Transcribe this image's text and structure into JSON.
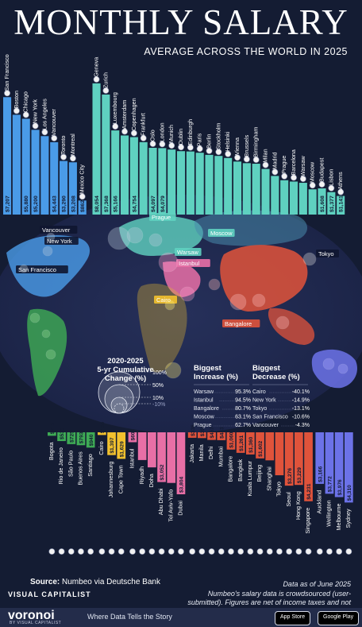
{
  "header": {
    "title": "MONTHLY SALARY",
    "subtitle": "AVERAGE ACROSS THE WORLD IN 2025"
  },
  "colors": {
    "background": "#141c33",
    "north_america": "#4a9be8",
    "europe": "#5fd1c0",
    "latin_america": "#3eaa55",
    "africa": "#f2c12e",
    "middle_east": "#e86fa6",
    "asia": "#e0533b",
    "oceania": "#6c72e8"
  },
  "chart_data": {
    "type": "bar",
    "unit": "$",
    "top_groups": [
      {
        "region": "North America",
        "color": "#4a9be8",
        "categories": [
          "San Francisco",
          "Boston",
          "Chicago",
          "New York",
          "Los Angeles",
          "Vancouver",
          "Toronto",
          "Montreal",
          "Mexico City"
        ],
        "values": [
          7207,
          6125,
          5880,
          5200,
          4815,
          4443,
          3290,
          3208,
          862
        ],
        "value_labels": [
          "$7,207",
          "",
          "$5,880",
          "$5,200",
          "",
          "$4,443",
          "$3,290",
          "$3,208",
          "$862"
        ]
      },
      {
        "region": "Europe",
        "color": "#5fd1c0",
        "categories": [
          "Geneva",
          "Zurich",
          "Luxembourg",
          "Amsterdam",
          "Copenhagen",
          "Frankfurt",
          "Oslo",
          "London",
          "Munich",
          "Dublin",
          "Edinburgh",
          "Paris",
          "Berlin",
          "Stockholm",
          "Helsinki",
          "Vienna",
          "Brussels",
          "Birmingham",
          "Milan",
          "Madrid",
          "Prague",
          "Barcelona",
          "Warsaw",
          "Moscow",
          "Budapest",
          "Lisbon",
          "Athens"
        ],
        "values": [
          8054,
          7368,
          5166,
          4855,
          4754,
          4446,
          4097,
          4079,
          3992,
          3892,
          3874,
          3795,
          3665,
          3599,
          3474,
          3254,
          3154,
          3121,
          2800,
          2370,
          2108,
          2027,
          1950,
          1550,
          1608,
          1377,
          1141
        ],
        "value_labels": [
          "$8,054",
          "$7,368",
          "$5,166",
          "",
          "$4,754",
          "",
          "$4,097",
          "$4,079",
          "",
          "",
          "",
          "",
          "",
          "",
          "",
          "",
          "",
          "",
          "",
          "",
          "",
          "",
          "",
          "",
          "$1,608",
          "$1,377",
          "$1,141"
        ]
      }
    ],
    "bottom_groups": [
      {
        "region": "Latin America",
        "color": "#3eaa55",
        "categories": [
          "Bogota",
          "Rio de Janeiro",
          "São Paulo",
          "Buenos Aires",
          "Santiago"
        ],
        "values": [
          213,
          539,
          725,
          793,
          940
        ],
        "value_labels": [
          "$213",
          "$539",
          "$725",
          "$793",
          "$940"
        ]
      },
      {
        "region": "Africa",
        "color": "#f2c12e",
        "categories": [
          "Cairo",
          "Johannesburg",
          "Cape Town"
        ],
        "values": [
          165,
          1397,
          1629
        ],
        "value_labels": [
          "$165",
          "$1,397",
          "$1,629"
        ]
      },
      {
        "region": "Middle East",
        "color": "#e86fa6",
        "categories": [
          "Istanbul",
          "Riyadh",
          "Doha",
          "Abu Dhabi",
          "Tel Aviv-Yafo",
          "Dubai"
        ],
        "values": [
          608,
          1702,
          2153,
          3052,
          3108,
          3804
        ],
        "value_labels": [
          "$608",
          "",
          "",
          "$3,052",
          "",
          "$3,804"
        ]
      },
      {
        "region": "Asia",
        "color": "#e0533b",
        "categories": [
          "Jakarta",
          "Manila",
          "Delhi",
          "Mumbai",
          "Bangalore",
          "Bangkok",
          "Kuala Lumpur",
          "Beijing",
          "Shanghai",
          "Tokyo",
          "Seoul",
          "Hong Kong",
          "Singapore"
        ],
        "values": [
          336,
          355,
          467,
          483,
          1060,
          1261,
          1360,
          1602,
          1722,
          2637,
          3276,
          3229,
          4231
        ],
        "value_labels": [
          "$336",
          "$355",
          "$467",
          "$483",
          "$1,060",
          "$1,261",
          "$1,360",
          "$1,602",
          "",
          "",
          "$3,276",
          "$3,229",
          "$4,231"
        ]
      },
      {
        "region": "Oceania",
        "color": "#6c72e8",
        "categories": [
          "Auckland",
          "Wellington",
          "Melbourne",
          "Sydney"
        ],
        "values": [
          3166,
          3772,
          3976,
          4310
        ],
        "value_labels": [
          "$3,166",
          "$3,772",
          "$3,976",
          "$4,310"
        ]
      }
    ],
    "map_labels": [
      {
        "name": "Vancouver",
        "color": "#ffffff"
      },
      {
        "name": "New York",
        "color": "#ffffff"
      },
      {
        "name": "San Francisco",
        "color": "#ffffff"
      },
      {
        "name": "Prague",
        "color": "#5fd1c0"
      },
      {
        "name": "Moscow",
        "color": "#5fd1c0"
      },
      {
        "name": "Warsaw",
        "color": "#5fd1c0"
      },
      {
        "name": "Istanbul",
        "color": "#e86fa6"
      },
      {
        "name": "Cairo",
        "color": "#f2c12e"
      },
      {
        "name": "Tokyo",
        "color": "#ffffff"
      },
      {
        "name": "Bangalore",
        "color": "#e0533b"
      }
    ],
    "legend": {
      "title": "2020-2025\n5-yr Cumulative\nChange (%)",
      "levels": [
        "100%",
        "50%",
        "10%",
        "-10%"
      ]
    },
    "biggest_increase": {
      "title": "Biggest\nIncrease (%)",
      "rows": [
        {
          "city": "Warsaw",
          "value": "95.3%"
        },
        {
          "city": "Istanbul",
          "value": "94.5%"
        },
        {
          "city": "Bangalore",
          "value": "80.7%"
        },
        {
          "city": "Moscow",
          "value": "63.1%"
        },
        {
          "city": "Prague",
          "value": "62.7%"
        }
      ]
    },
    "biggest_decrease": {
      "title": "Biggest\nDecrease (%)",
      "rows": [
        {
          "city": "Cairo",
          "value": "-40.1%"
        },
        {
          "city": "New York",
          "value": "-14.9%"
        },
        {
          "city": "Tokyo",
          "value": "-13.1%"
        },
        {
          "city": "San Francisco",
          "value": "-10.6%"
        },
        {
          "city": "Vancouver",
          "value": "-4.3%"
        }
      ]
    }
  },
  "footer": {
    "source_label": "Source:",
    "source_value": "Numbeo via Deutsche Bank",
    "as_of": "Data as of June 2025",
    "note": "Numbeo's salary data is crowdsourced (user-submitted). Figures are net of income taxes and not adjusted for inflation.",
    "brand_top": "VISUAL CAPITALIST",
    "brand_logo": "voronoi",
    "brand_sub": "BY VISUAL CAPITALIST",
    "tagline": "Where Data Tells the Story",
    "app_store": "App Store",
    "google_play": "Google Play"
  }
}
